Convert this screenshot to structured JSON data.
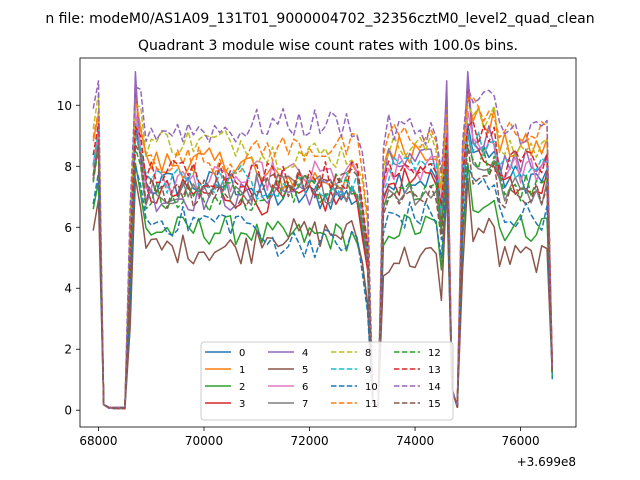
{
  "chart_data": {
    "type": "line",
    "suptitle": "n file: modeM0/AS1A09_131T01_9000004702_32356cztM0_level2_quad_clean",
    "title": "Quadrant 3 module wise count rates with 100.0s bins.",
    "xlabel": "",
    "ylabel": "",
    "offset_label": "+3.699e8",
    "x_offset": 369900000,
    "xlim": [
      67650,
      77050
    ],
    "ylim": [
      -0.55,
      11.55
    ],
    "xticks": [
      68000,
      70000,
      72000,
      74000,
      76000
    ],
    "xtick_labels": [
      "68000",
      "70000",
      "72000",
      "74000",
      "76000"
    ],
    "yticks": [
      0,
      2,
      4,
      6,
      8,
      10
    ],
    "ytick_labels": [
      "0",
      "2",
      "4",
      "6",
      "8",
      "10"
    ],
    "grid": false,
    "legend": {
      "placement": "lower-center",
      "ncol": 4
    },
    "bin_width": 100,
    "x_start": 67900,
    "segments": [
      [
        67900,
        68000
      ],
      [
        68100,
        68500
      ],
      [
        68600,
        73100
      ],
      [
        73200,
        73300
      ],
      [
        73400,
        74600
      ],
      [
        74700,
        74800
      ],
      [
        74900,
        76600
      ]
    ],
    "series": [
      {
        "name": "0",
        "color": "#1f77b4",
        "dash": "solid",
        "level_a": 7.4,
        "level_b": 7.0,
        "level_c": 7.6,
        "peak": 9.4
      },
      {
        "name": "1",
        "color": "#ff7f0e",
        "dash": "solid",
        "level_a": 8.1,
        "level_b": 7.6,
        "level_c": 8.6,
        "peak": 10.3
      },
      {
        "name": "2",
        "color": "#2ca02c",
        "dash": "solid",
        "level_a": 5.9,
        "level_b": 5.7,
        "level_c": 6.0,
        "peak": 8.1
      },
      {
        "name": "3",
        "color": "#d62728",
        "dash": "solid",
        "level_a": 7.1,
        "level_b": 6.9,
        "level_c": 7.5,
        "peak": 10.8
      },
      {
        "name": "4",
        "color": "#9467bd",
        "dash": "solid",
        "level_a": 7.0,
        "level_b": 7.2,
        "level_c": 8.1,
        "peak": 11.1
      },
      {
        "name": "5",
        "color": "#8c564b",
        "dash": "solid",
        "level_a": 5.3,
        "level_b": 5.8,
        "level_c": 5.0,
        "peak": 7.6
      },
      {
        "name": "6",
        "color": "#e377c2",
        "dash": "solid",
        "level_a": 7.5,
        "level_b": 7.7,
        "level_c": 7.9,
        "peak": 9.8
      },
      {
        "name": "7",
        "color": "#7f7f7f",
        "dash": "solid",
        "level_a": 7.2,
        "level_b": 7.3,
        "level_c": 7.2,
        "peak": 9.1
      },
      {
        "name": "8",
        "color": "#bcbd22",
        "dash": "dashed",
        "level_a": 8.8,
        "level_b": 8.4,
        "level_c": 8.6,
        "peak": 10.0
      },
      {
        "name": "9",
        "color": "#17becf",
        "dash": "dashed",
        "level_a": 7.6,
        "level_b": 7.4,
        "level_c": 7.8,
        "peak": 9.0
      },
      {
        "name": "10",
        "color": "#1f77b4",
        "dash": "dashed",
        "level_a": 6.2,
        "level_b": 5.5,
        "level_c": 6.4,
        "peak": 8.0
      },
      {
        "name": "11",
        "color": "#ff7f0e",
        "dash": "dashed",
        "level_a": 8.2,
        "level_b": 8.6,
        "level_c": 9.0,
        "peak": 10.2
      },
      {
        "name": "12",
        "color": "#2ca02c",
        "dash": "dashed",
        "level_a": 7.0,
        "level_b": 7.3,
        "level_c": 7.3,
        "peak": 8.6
      },
      {
        "name": "13",
        "color": "#d62728",
        "dash": "dashed",
        "level_a": 7.8,
        "level_b": 7.7,
        "level_c": 8.1,
        "peak": 9.3
      },
      {
        "name": "14",
        "color": "#9467bd",
        "dash": "dashed",
        "level_a": 9.2,
        "level_b": 9.4,
        "level_c": 9.2,
        "peak": 10.6
      },
      {
        "name": "15",
        "color": "#8c564b",
        "dash": "dashed",
        "level_a": 7.1,
        "level_b": 7.4,
        "level_c": 7.0,
        "peak": 8.7
      }
    ]
  }
}
